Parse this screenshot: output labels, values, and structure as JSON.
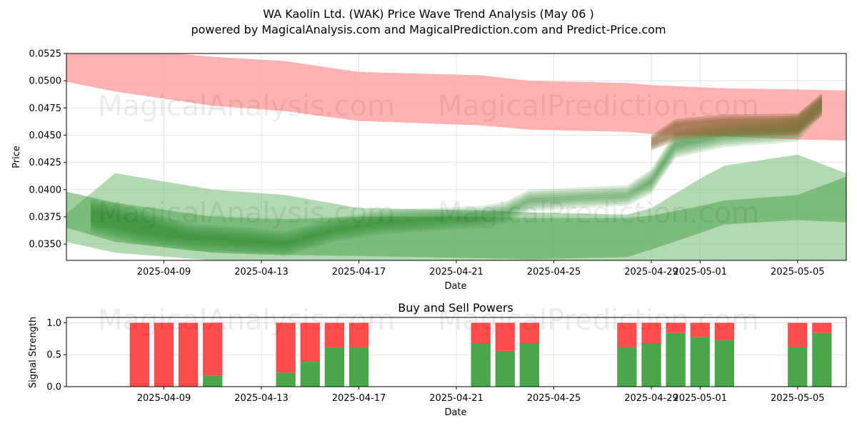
{
  "title": "WA Kaolin Ltd. (WAK) Price Wave Trend Analysis (May 06 )",
  "subtitle": "powered by MagicalAnalysis.com and MagicalPrediction.com and Predict-Price.com",
  "watermarks": [
    "MagicalAnalysis.com",
    "MagicalPrediction.com"
  ],
  "colors": {
    "sell": "#ff4d4d",
    "buy": "#4aa64a",
    "band_red": "#ffaaaa",
    "band_green": "#2e8b2e",
    "brown": "#8b6a3a"
  },
  "chart_data": [
    {
      "type": "area",
      "xlabel": "Date",
      "ylabel": "Price",
      "ylim": [
        0.0335,
        0.0525
      ],
      "xlim": [
        "2025-04-05",
        "2025-05-07"
      ],
      "grid": true,
      "x_ticks": [
        "2025-04-09",
        "2025-04-13",
        "2025-04-17",
        "2025-04-21",
        "2025-04-25",
        "2025-04-29",
        "2025-05-01",
        "2025-05-05"
      ],
      "y_ticks": [
        "0.0350",
        "0.0375",
        "0.0400",
        "0.0425",
        "0.0450",
        "0.0475",
        "0.0500",
        "0.0525"
      ],
      "series": [
        {
          "x": [
            "2025-04-05",
            "2025-04-07",
            "2025-04-11",
            "2025-04-14",
            "2025-04-17",
            "2025-04-22",
            "2025-04-24",
            "2025-04-28",
            "2025-04-29",
            "2025-05-02",
            "2025-05-05",
            "2025-05-07"
          ],
          "upper": [
            0.053,
            0.053,
            0.0522,
            0.0518,
            0.0508,
            0.0505,
            0.05,
            0.0498,
            0.0496,
            0.0493,
            0.0492,
            0.0491
          ],
          "lower": [
            0.0499,
            0.049,
            0.0477,
            0.0472,
            0.0463,
            0.0459,
            0.0455,
            0.0453,
            0.0451,
            0.0449,
            0.0446,
            0.0445
          ]
        },
        {
          "x": [
            "2025-04-05",
            "2025-04-07",
            "2025-04-11",
            "2025-04-14",
            "2025-04-17",
            "2025-04-22",
            "2025-04-24",
            "2025-04-28",
            "2025-04-29",
            "2025-05-01",
            "2025-05-02",
            "2025-05-05",
            "2025-05-07"
          ],
          "upper": [
            0.0378,
            0.0415,
            0.04,
            0.0395,
            0.0383,
            0.0381,
            0.0379,
            0.0377,
            0.0383,
            0.041,
            0.0422,
            0.0432,
            0.0415
          ],
          "lower": [
            0.0352,
            0.0342,
            0.0335,
            0.0335,
            0.0335,
            0.0333,
            0.033,
            0.033,
            0.033,
            0.033,
            0.033,
            0.033,
            0.033
          ]
        },
        {
          "x": [
            "2025-04-05",
            "2025-04-07",
            "2025-04-11",
            "2025-04-14",
            "2025-04-17",
            "2025-04-22",
            "2025-04-24",
            "2025-04-28",
            "2025-04-29",
            "2025-05-01",
            "2025-05-02",
            "2025-05-05",
            "2025-05-07"
          ],
          "upper": [
            0.0398,
            0.0388,
            0.0375,
            0.0373,
            0.0375,
            0.0375,
            0.0374,
            0.0374,
            0.0376,
            0.0385,
            0.039,
            0.0395,
            0.0412
          ],
          "lower": [
            0.0365,
            0.0352,
            0.0342,
            0.034,
            0.0339,
            0.0337,
            0.0336,
            0.0338,
            0.0345,
            0.036,
            0.0368,
            0.0372,
            0.037
          ]
        },
        {
          "x": [
            "2025-04-06",
            "2025-04-08",
            "2025-04-10",
            "2025-04-12",
            "2025-04-14",
            "2025-04-16",
            "2025-04-18",
            "2025-04-20",
            "2025-04-22",
            "2025-04-23",
            "2025-04-24",
            "2025-04-26",
            "2025-04-28",
            "2025-04-29",
            "2025-04-30",
            "2025-05-02",
            "2025-05-04",
            "2025-05-05",
            "2025-05-06"
          ],
          "upper": [
            0.0388,
            0.0378,
            0.0365,
            0.0362,
            0.0358,
            0.037,
            0.0377,
            0.0379,
            0.0381,
            0.0385,
            0.0396,
            0.0398,
            0.04,
            0.0415,
            0.045,
            0.0458,
            0.0461,
            0.0465,
            0.0485
          ],
          "lower": [
            0.0366,
            0.0356,
            0.035,
            0.0347,
            0.0345,
            0.0358,
            0.0365,
            0.0368,
            0.0371,
            0.0375,
            0.0386,
            0.0389,
            0.0391,
            0.0402,
            0.0435,
            0.0445,
            0.0448,
            0.045,
            0.0474
          ]
        },
        {
          "x": [
            "2025-04-29",
            "2025-04-30",
            "2025-05-02",
            "2025-05-05",
            "2025-05-06"
          ],
          "upper": [
            0.0448,
            0.0463,
            0.0467,
            0.0468,
            0.0486
          ],
          "lower": [
            0.0438,
            0.0447,
            0.0451,
            0.0452,
            0.047
          ]
        }
      ]
    },
    {
      "type": "bar",
      "title": "Buy and Sell Powers",
      "xlabel": "Date",
      "ylabel": "Signal Strength",
      "ylim": [
        0,
        1.05
      ],
      "y_ticks": [
        "0.0",
        "0.5",
        "1.0"
      ],
      "x_ticks": [
        "2025-04-09",
        "2025-04-13",
        "2025-04-17",
        "2025-04-21",
        "2025-04-25",
        "2025-04-29",
        "2025-05-01",
        "2025-05-05"
      ],
      "grid": true,
      "categories": [
        "2025-04-08",
        "2025-04-09",
        "2025-04-10",
        "2025-04-11",
        "2025-04-14",
        "2025-04-15",
        "2025-04-16",
        "2025-04-17",
        "2025-04-22",
        "2025-04-23",
        "2025-04-24",
        "2025-04-28",
        "2025-04-29",
        "2025-04-30",
        "2025-05-01",
        "2025-05-02",
        "2025-05-05",
        "2025-05-06"
      ],
      "series": [
        {
          "values": [
            0.0,
            0.0,
            0.0,
            0.17,
            0.22,
            0.39,
            0.62,
            0.62,
            0.67,
            0.56,
            0.67,
            0.62,
            0.67,
            0.84,
            0.78,
            0.73,
            0.62,
            0.84
          ]
        },
        {
          "values": [
            1.0,
            1.0,
            1.0,
            0.83,
            0.78,
            0.61,
            0.38,
            0.38,
            0.33,
            0.44,
            0.33,
            0.38,
            0.33,
            0.16,
            0.22,
            0.27,
            0.38,
            0.16
          ]
        }
      ]
    }
  ]
}
